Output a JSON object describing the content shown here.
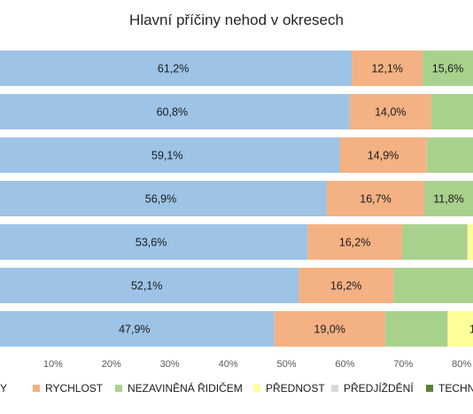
{
  "chart_data": {
    "type": "bar",
    "orientation": "horizontal",
    "stacked": "percent",
    "title": "Hlavní příčiny nehod v okresech",
    "categories": [
      "",
      "",
      "",
      "",
      "",
      "",
      ""
    ],
    "xlim": [
      0,
      1
    ],
    "xticks": [
      "10%",
      "20%",
      "30%",
      "40%",
      "50%",
      "60%",
      "70%",
      "80%"
    ],
    "grid": false,
    "legend_position": "bottom",
    "series": [
      {
        "name": "ZDY",
        "color": "#9dc3e6",
        "values": [
          0.612,
          0.608,
          0.591,
          0.569,
          0.536,
          0.521,
          0.479
        ],
        "labels": [
          "61,2%",
          "60,8%",
          "59,1%",
          "56,9%",
          "53,6%",
          "52,1%",
          "47,9%"
        ]
      },
      {
        "name": "RYCHLOST",
        "color": "#f4b183",
        "values": [
          0.121,
          0.14,
          0.149,
          0.167,
          0.162,
          0.162,
          0.19
        ],
        "labels": [
          "12,1%",
          "14,0%",
          "14,9%",
          "16,7%",
          "16,2%",
          "16,2%",
          "19,0%"
        ]
      },
      {
        "name": "NEZAVINĚNÁ ŘIDIČEM",
        "color": "#a9d18e",
        "values": [
          0.156,
          null,
          null,
          0.118,
          null,
          null,
          null
        ],
        "labels": [
          "15,6%",
          "",
          "",
          "11,8%",
          "",
          "",
          ""
        ]
      },
      {
        "name": "PŘEDNOST",
        "color": "#ffff99",
        "values": [
          null,
          null,
          null,
          null,
          null,
          null,
          null
        ],
        "labels": [
          "",
          "",
          "",
          "",
          "",
          "",
          "1"
        ]
      },
      {
        "name": "PŘEDJÍŽDĚNÍ",
        "color": "#d9d9d9",
        "values": [
          null,
          null,
          null,
          null,
          null,
          null,
          null
        ]
      },
      {
        "name": "TECHN",
        "color": "#548235",
        "values": [
          null,
          null,
          null,
          null,
          null,
          null,
          null
        ]
      }
    ]
  }
}
